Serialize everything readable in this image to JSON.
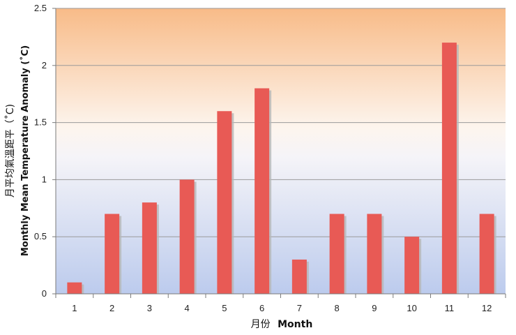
{
  "chart_data": {
    "type": "bar",
    "categories": [
      "1",
      "2",
      "3",
      "4",
      "5",
      "6",
      "7",
      "8",
      "9",
      "10",
      "11",
      "12"
    ],
    "series": [
      {
        "values": [
          0.1,
          0.7,
          0.8,
          1.0,
          1.6,
          1.8,
          0.3,
          0.7,
          0.7,
          0.5,
          2.2,
          0.7
        ]
      }
    ],
    "ylim": [
      0,
      2.5
    ],
    "yticks": [
      "0",
      "0.5",
      "1",
      "1.5",
      "2",
      "2.5"
    ],
    "xlabel_zh": "月份",
    "xlabel_en": "Month",
    "ylabel_zh": "月平均氣溫距平（˚C)",
    "ylabel_en": "Monthly Mean Temperature Anomaly (˚C)",
    "grid": true,
    "legend": "none",
    "colors": {
      "bar": "#e85a55",
      "bar_shadow": "#b7b7b7",
      "background_top": "#f8bb88",
      "background_bottom": "#bccbed",
      "gridline": "#9a9a9a",
      "axis": "#7a7a7a"
    }
  }
}
